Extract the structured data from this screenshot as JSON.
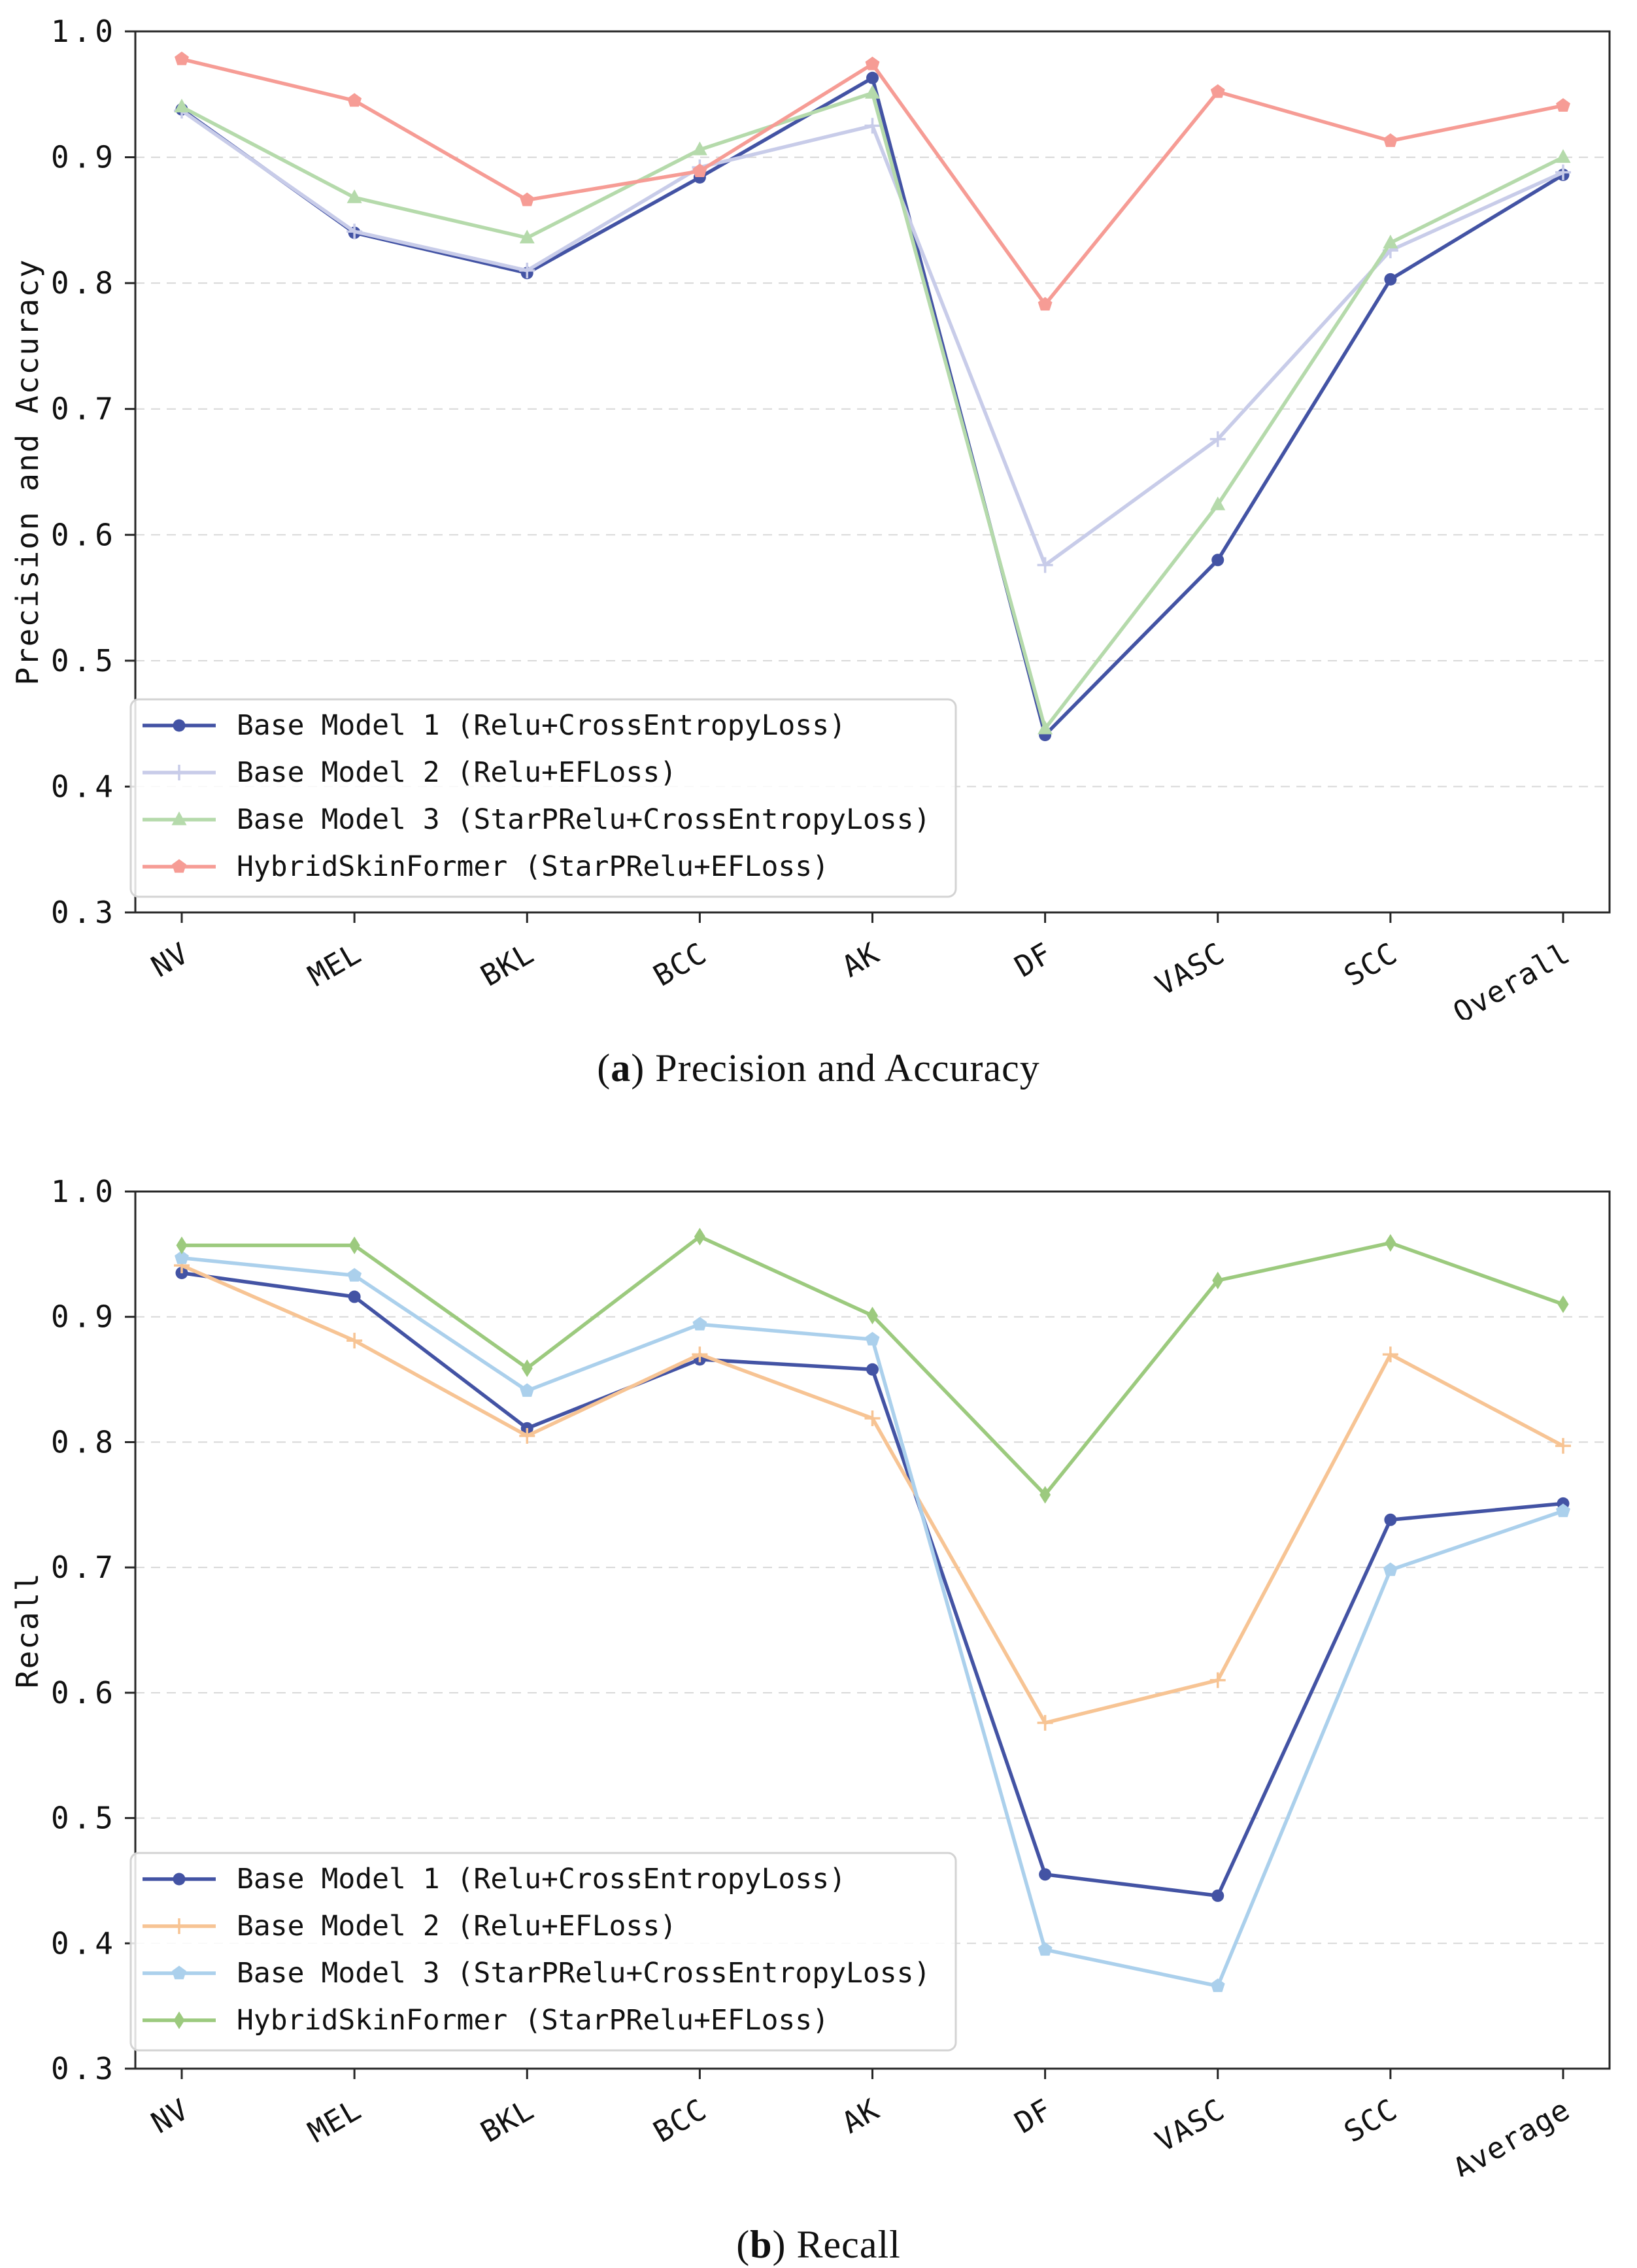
{
  "captions": {
    "a": {
      "open": "(",
      "letter": "a",
      "close": ") ",
      "text": "Precision and Accuracy"
    },
    "b": {
      "open": "(",
      "letter": "b",
      "close": ") ",
      "text": "Recall"
    }
  },
  "chart_data": [
    {
      "type": "line",
      "title": "(a) Precision and Accuracy",
      "ylabel": "Precision and Accuracy",
      "xlabel": "",
      "ylim": [
        0.3,
        1.0
      ],
      "yticks": [
        1.0,
        0.9,
        0.8,
        0.7,
        0.6,
        0.5,
        0.4,
        0.3
      ],
      "grid": "horizontal-dashed",
      "legend_position": "lower-left",
      "categories": [
        "NV",
        "MEL",
        "BKL",
        "BCC",
        "AK",
        "DF",
        "VASC",
        "SCC",
        "Overall"
      ],
      "series": [
        {
          "name": "Base Model 1 (Relu+CrossEntropyLoss)",
          "color": "#4353a4",
          "marker": "circle",
          "values": [
            0.938,
            0.84,
            0.808,
            0.884,
            0.963,
            0.441,
            0.58,
            0.803,
            0.886
          ]
        },
        {
          "name": "Base Model 2 (Relu+EFLoss)",
          "color": "#c8cce9",
          "marker": "plus",
          "values": [
            0.937,
            0.841,
            0.81,
            0.892,
            0.925,
            0.576,
            0.676,
            0.826,
            0.888
          ]
        },
        {
          "name": "Base Model 3 (StarPRelu+CrossEntropyLoss)",
          "color": "#b5daab",
          "marker": "triangle",
          "values": [
            0.94,
            0.868,
            0.836,
            0.906,
            0.951,
            0.446,
            0.624,
            0.832,
            0.9
          ]
        },
        {
          "name": "HybridSkinFormer (StarPRelu+EFLoss)",
          "color": "#f69c95",
          "marker": "pentagon",
          "values": [
            0.978,
            0.945,
            0.866,
            0.889,
            0.974,
            0.783,
            0.952,
            0.913,
            0.941
          ]
        }
      ]
    },
    {
      "type": "line",
      "title": "(b) Recall",
      "ylabel": "Recall",
      "xlabel": "",
      "ylim": [
        0.3,
        1.0
      ],
      "yticks": [
        1.0,
        0.9,
        0.8,
        0.7,
        0.6,
        0.5,
        0.4,
        0.3
      ],
      "grid": "horizontal-dashed",
      "legend_position": "lower-left",
      "categories": [
        "NV",
        "MEL",
        "BKL",
        "BCC",
        "AK",
        "DF",
        "VASC",
        "SCC",
        "Average"
      ],
      "series": [
        {
          "name": "Base Model 1 (Relu+CrossEntropyLoss)",
          "color": "#4353a4",
          "marker": "circle",
          "values": [
            0.935,
            0.916,
            0.811,
            0.866,
            0.858,
            0.455,
            0.438,
            0.738,
            0.751
          ]
        },
        {
          "name": "Base Model 2 (Relu+EFLoss)",
          "color": "#f7c494",
          "marker": "plus",
          "values": [
            0.941,
            0.881,
            0.805,
            0.87,
            0.819,
            0.576,
            0.61,
            0.87,
            0.797
          ]
        },
        {
          "name": "Base Model 3 (StarPRelu+CrossEntropyLoss)",
          "color": "#abd0ec",
          "marker": "pentagon",
          "values": [
            0.947,
            0.933,
            0.841,
            0.894,
            0.882,
            0.395,
            0.366,
            0.698,
            0.745
          ]
        },
        {
          "name": "HybridSkinFormer (StarPRelu+EFLoss)",
          "color": "#9cca7e",
          "marker": "diamond",
          "values": [
            0.957,
            0.957,
            0.859,
            0.964,
            0.901,
            0.758,
            0.929,
            0.959,
            0.91
          ]
        }
      ]
    }
  ]
}
